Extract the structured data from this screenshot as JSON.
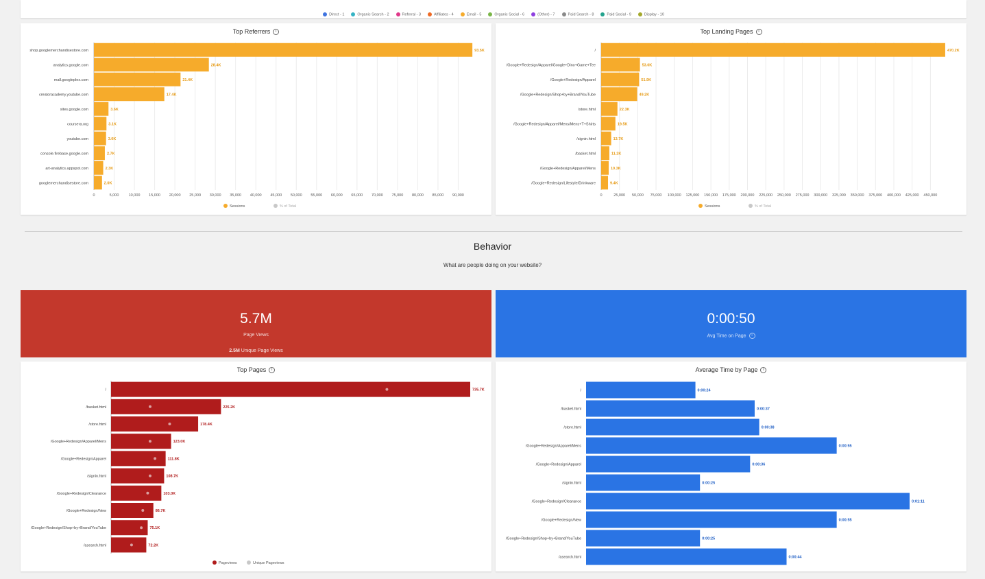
{
  "colors": {
    "orange": "#f6ab2b",
    "orange_label": "#e69a14",
    "red": "#b01c1c",
    "red_kpi": "#c3382c",
    "blue": "#2a74e4",
    "grey": "#c8c8c8",
    "grid": "#ececec"
  },
  "top_legend": [
    {
      "label": "Direct - 1",
      "color": "#3f74e0"
    },
    {
      "label": "Organic Search - 2",
      "color": "#35b3c4"
    },
    {
      "label": "Referral - 3",
      "color": "#e0388a"
    },
    {
      "label": "Affiliates - 4",
      "color": "#ee6a25"
    },
    {
      "label": "Email - 5",
      "color": "#f6ab2b"
    },
    {
      "label": "Organic Social - 6",
      "color": "#7ab648"
    },
    {
      "label": "(Other) - 7",
      "color": "#8e3fe0"
    },
    {
      "label": "Paid Search - 8",
      "color": "#8a8a8a"
    },
    {
      "label": "Paid Social - 9",
      "color": "#24a38e"
    },
    {
      "label": "Display - 10",
      "color": "#a4a92c"
    }
  ],
  "section": {
    "title": "Behavior",
    "subtitle": "What are people doing on your website?"
  },
  "kpi_pageviews": {
    "value": "5.7M",
    "label": "Page Views",
    "sub_value": "2.5M",
    "sub_label": "Unique Page Views"
  },
  "kpi_time": {
    "value": "0:00:50",
    "label": "Avg Time on Page",
    "info": "i"
  },
  "chart_data": [
    {
      "type": "bar",
      "orientation": "horizontal",
      "title": "Top Referrers",
      "categories": [
        "shop.googlemerchandisestore.com",
        "analytics.google.com",
        "mall.googleplex.com",
        "creatoracademy.youtube.com",
        "sites.google.com",
        "coursera.org",
        "youtube.com",
        "console.firebase.google.com",
        "art-analytics.appspot.com",
        "googlemerchandisestore.com"
      ],
      "series": [
        {
          "name": "Sessions",
          "values": [
            93500,
            28400,
            21400,
            17400,
            3600,
            3100,
            3000,
            2700,
            2300,
            2000
          ]
        }
      ],
      "data_labels": [
        "93.5K",
        "28.4K",
        "21.4K",
        "17.4K",
        "3.6K",
        "3.1K",
        "3.0K",
        "2.7K",
        "2.3K",
        "2.0K"
      ],
      "legend": [
        "Sessions",
        "% of Total"
      ],
      "xlim": [
        0,
        95000
      ],
      "ticks": [
        0,
        5000,
        10000,
        15000,
        20000,
        25000,
        30000,
        35000,
        40000,
        45000,
        50000,
        55000,
        60000,
        65000,
        70000,
        75000,
        80000,
        85000,
        90000
      ],
      "tick_labels": [
        "0",
        "5,000",
        "10,000",
        "15,000",
        "20,000",
        "25,000",
        "30,000",
        "35,000",
        "40,000",
        "45,000",
        "50,000",
        "55,000",
        "60,000",
        "65,000",
        "70,000",
        "75,000",
        "80,000",
        "85,000",
        "90,000"
      ],
      "grid": true,
      "legend_position": "bottom"
    },
    {
      "type": "bar",
      "orientation": "horizontal",
      "title": "Top Landing Pages",
      "categories": [
        "/",
        "/Google+Redesign/Apparel/Google+Dino+Game+Tee",
        "/Google+Redesign/Apparel",
        "/Google+Redesign/Shop+by+Brand/YouTube",
        "/store.html",
        "/Google+Redesign/Apparel/Mens/Mens+T+Shirts",
        "/signin.html",
        "/basket.html",
        "/Google+Redesign/Apparel/Mens",
        "/Google+Redesign/Lifestyle/Drinkware"
      ],
      "series": [
        {
          "name": "Sessions",
          "values": [
            470200,
            53000,
            51900,
            49200,
            22300,
            19500,
            13700,
            11200,
            10300,
            9400
          ]
        }
      ],
      "data_labels": [
        "470.2K",
        "53.0K",
        "51.9K",
        "49.2K",
        "22.3K",
        "19.5K",
        "13.7K",
        "11.2K",
        "10.3K",
        "9.4K"
      ],
      "legend": [
        "Sessions",
        "% of Total"
      ],
      "xlim": [
        0,
        474000
      ],
      "ticks": [
        0,
        25000,
        50000,
        75000,
        100000,
        125000,
        150000,
        175000,
        200000,
        225000,
        250000,
        275000,
        300000,
        325000,
        350000,
        375000,
        400000,
        425000,
        450000
      ],
      "tick_labels": [
        "0",
        "25,000",
        "50,000",
        "75,000",
        "100,000",
        "125,000",
        "150,000",
        "175,000",
        "200,000",
        "225,000",
        "250,000",
        "275,000",
        "300,000",
        "325,000",
        "350,000",
        "375,000",
        "400,000",
        "425,000",
        "450,000"
      ],
      "grid": true,
      "legend_position": "bottom"
    },
    {
      "type": "bar",
      "orientation": "horizontal",
      "title": "Top Pages",
      "categories": [
        "/",
        "/basket.html",
        "/store.html",
        "/Google+Redesign/Apparel/Mens",
        "/Google+Redesign/Apparel",
        "/signin.html",
        "/Google+Redesign/Clearance",
        "/Google+Redesign/New",
        "/Google+Redesign/Shop+by+Brand/YouTube",
        "/asearch.html"
      ],
      "series": [
        {
          "name": "Pageviews",
          "values": [
            735700,
            225200,
            178400,
            123000,
            111800,
            108700,
            103000,
            86700,
            75100,
            72200
          ]
        },
        {
          "name": "Unique Pageviews",
          "values": [
            565000,
            80000,
            120000,
            80000,
            90000,
            80000,
            75000,
            65000,
            62000,
            42000
          ]
        }
      ],
      "data_labels": [
        "735.7K",
        "225.2K",
        "178.4K",
        "123.0K",
        "111.8K",
        "108.7K",
        "103.0K",
        "86.7K",
        "75.1K",
        "72.2K"
      ],
      "legend": [
        "Pageviews",
        "Unique Pageviews"
      ],
      "xlim": [
        0,
        735700
      ],
      "grid": false,
      "legend_position": "bottom"
    },
    {
      "type": "bar",
      "orientation": "horizontal",
      "title": "Average Time by Page",
      "categories": [
        "/",
        "/basket.html",
        "/store.html",
        "/Google+Redesign/Apparel/Mens",
        "/Google+Redesign/Apparel",
        "/signin.html",
        "/Google+Redesign/Clearance",
        "/Google+Redesign/New",
        "/Google+Redesign/Shop+by+Brand/YouTube",
        "/asearch.html"
      ],
      "series": [
        {
          "name": "Avg Time on Page",
          "values": [
            24,
            37,
            38,
            55,
            36,
            25,
            71,
            55,
            25,
            44
          ]
        }
      ],
      "data_labels": [
        "0:00:24",
        "0:00:37",
        "0:00:38",
        "0:00:55",
        "0:00:36",
        "0:00:25",
        "0:01:11",
        "0:00:55",
        "0:00:25",
        "0:00:44"
      ],
      "xlim": [
        0,
        71
      ],
      "grid": false
    }
  ]
}
